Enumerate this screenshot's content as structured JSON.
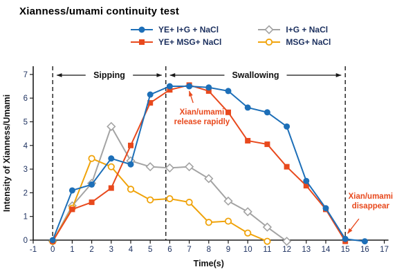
{
  "chart_data": {
    "type": "line",
    "title": "Xianness/umami continuity test",
    "xlabel": "Time(s)",
    "ylabel": "Intensity of Xianness/Umami",
    "xlim": [
      -1,
      17
    ],
    "ylim": [
      0,
      7
    ],
    "grid": false,
    "legend_position": "top",
    "x_ticks": [
      -1,
      0,
      1,
      2,
      3,
      4,
      5,
      6,
      7,
      8,
      9,
      10,
      11,
      12,
      13,
      14,
      15,
      16,
      17
    ],
    "y_ticks": [
      0,
      1,
      2,
      3,
      4,
      5,
      6,
      7
    ],
    "axis_color": "#1a1a1a",
    "tick_label_color": "#1b2f5e",
    "legend_text_color": "#1b2f5e",
    "series": [
      {
        "name": "YE+ I+G + NaCl",
        "color": "#1d6fb8",
        "marker": "circle-filled",
        "points": [
          [
            0,
            0
          ],
          [
            1,
            2.1
          ],
          [
            2,
            2.35
          ],
          [
            3,
            3.45
          ],
          [
            4,
            3.2
          ],
          [
            5,
            6.15
          ],
          [
            6,
            6.5
          ],
          [
            7,
            6.5
          ],
          [
            8,
            6.45
          ],
          [
            9,
            6.3
          ],
          [
            10,
            5.6
          ],
          [
            11,
            5.4
          ],
          [
            12,
            4.8
          ],
          [
            13,
            2.5
          ],
          [
            14,
            1.35
          ],
          [
            15,
            0.05
          ],
          [
            16,
            -0.05
          ]
        ]
      },
      {
        "name": "YE+ MSG+ NaCl",
        "color": "#e8491d",
        "marker": "square-filled",
        "points": [
          [
            0,
            -0.05
          ],
          [
            1,
            1.3
          ],
          [
            2,
            1.6
          ],
          [
            3,
            2.2
          ],
          [
            4,
            4.0
          ],
          [
            5,
            5.8
          ],
          [
            6,
            6.35
          ],
          [
            7,
            6.55
          ],
          [
            8,
            6.3
          ],
          [
            9,
            5.4
          ],
          [
            10,
            4.2
          ],
          [
            11,
            4.05
          ],
          [
            12,
            3.1
          ],
          [
            13,
            2.3
          ],
          [
            14,
            1.3
          ],
          [
            15,
            -0.05
          ]
        ]
      },
      {
        "name": "I+G +  NaCl",
        "color": "#a3a3a3",
        "marker": "diamond-open",
        "points": [
          [
            0,
            -0.05
          ],
          [
            1,
            1.45
          ],
          [
            2,
            2.4
          ],
          [
            3,
            4.8
          ],
          [
            4,
            3.35
          ],
          [
            5,
            3.1
          ],
          [
            6,
            3.05
          ],
          [
            7,
            3.1
          ],
          [
            8,
            2.6
          ],
          [
            9,
            1.65
          ],
          [
            10,
            1.2
          ],
          [
            11,
            0.55
          ],
          [
            12,
            -0.05
          ]
        ]
      },
      {
        "name": "MSG+ NaCl",
        "color": "#f0a30a",
        "marker": "circle-open",
        "points": [
          [
            0,
            -0.05
          ],
          [
            1,
            1.35
          ],
          [
            2,
            3.45
          ],
          [
            3,
            3.1
          ],
          [
            4,
            2.15
          ],
          [
            5,
            1.7
          ],
          [
            6,
            1.75
          ],
          [
            7,
            1.6
          ],
          [
            8,
            0.75
          ],
          [
            9,
            0.8
          ],
          [
            10,
            0.3
          ],
          [
            11,
            -0.05
          ]
        ]
      }
    ],
    "phase_lines": [
      0,
      5.8,
      15
    ],
    "phases": [
      {
        "label": "Sipping",
        "from": 0,
        "to": 5.8
      },
      {
        "label": "Swallowing",
        "from": 5.8,
        "to": 15
      }
    ],
    "annotations": [
      {
        "lines": [
          "Xian/umami",
          "release rapidly"
        ],
        "x": 7.65,
        "y": 5.1,
        "arrow_from": [
          7.2,
          5.8
        ],
        "arrow_to": [
          7.0,
          6.3
        ],
        "color": "#e8491d"
      },
      {
        "lines": [
          "Xian/umami",
          "disappear"
        ],
        "x": 16.3,
        "y": 1.55,
        "arrow_from": [
          15.7,
          0.9
        ],
        "arrow_to": [
          15.12,
          0.28
        ],
        "color": "#e8491d"
      }
    ]
  }
}
